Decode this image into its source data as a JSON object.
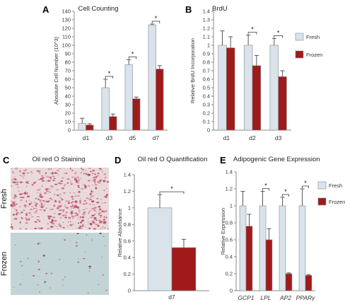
{
  "colors": {
    "fresh": "#d9e3e9",
    "frozen": "#a01a1a",
    "axis": "#8a8a8a",
    "error": "#555555",
    "fresh_photo_bg": "#e9d9db",
    "fresh_photo_dots": "#b63a52",
    "frozen_photo_bg": "#c3d4d6",
    "frozen_photo_dots": "#9c3a4c"
  },
  "panels": {
    "A": {
      "letter": "A"
    },
    "B": {
      "letter": "B"
    },
    "C": {
      "letter": "C",
      "title": "Oil red O Staining",
      "fresh_label": "Fresh",
      "frozen_label": "Frozen"
    },
    "D": {
      "letter": "D"
    },
    "E": {
      "letter": "E"
    }
  },
  "legend": {
    "fresh": "Fresh",
    "frozen": "Frozen"
  },
  "chart_data": [
    {
      "id": "A",
      "type": "bar",
      "title": "Cell Counting",
      "ylabel": "Absolute Cell Number (10^3)",
      "categories": [
        "d1",
        "d3",
        "d5",
        "d7"
      ],
      "ylim": [
        0,
        140
      ],
      "yticks": [
        "0",
        "10",
        "20",
        "30",
        "40",
        "50",
        "60",
        "70",
        "80",
        "90",
        "100",
        "110",
        "120",
        "130",
        "140"
      ],
      "series": [
        {
          "name": "Fresh",
          "values": [
            8,
            50,
            77,
            124
          ],
          "errors": [
            6,
            10,
            6,
            1
          ]
        },
        {
          "name": "Frozen",
          "values": [
            6,
            16,
            37,
            72
          ],
          "errors": [
            1.5,
            3,
            2,
            4
          ]
        }
      ],
      "significance": [
        false,
        true,
        true,
        true
      ],
      "sig_label": "*"
    },
    {
      "id": "B",
      "type": "bar",
      "title": "BrdU",
      "ylabel": "Relative BrdU Incorporation",
      "categories": [
        "d1",
        "d2",
        "d3"
      ],
      "ylim": [
        0,
        1.4
      ],
      "yticks": [
        "0",
        "0.1",
        "0.2",
        "0.3",
        "0.4",
        "0.5",
        "0.6",
        "0.7",
        "0.8",
        "0.9",
        "1",
        "1.1",
        "1.2",
        "1.3",
        "1.4"
      ],
      "series": [
        {
          "name": "Fresh",
          "values": [
            1.0,
            1.0,
            1.0
          ],
          "errors": [
            0.17,
            0.12,
            0.08
          ]
        },
        {
          "name": "Frozen",
          "values": [
            0.97,
            0.76,
            0.63
          ],
          "errors": [
            0.13,
            0.12,
            0.07
          ]
        }
      ],
      "significance": [
        false,
        true,
        true
      ],
      "sig_label": "*",
      "legend": "right"
    },
    {
      "id": "D",
      "type": "bar",
      "title": "Oil red O Quantification",
      "ylabel": "Relative Absorbance",
      "categories": [
        "d7"
      ],
      "ylim": [
        0,
        1.4
      ],
      "yticks": [
        "0",
        "0.2",
        "0.4",
        "0.6",
        "0.8",
        "1",
        "1.2",
        "1.4"
      ],
      "series": [
        {
          "name": "Fresh",
          "values": [
            1.0
          ],
          "errors": [
            0.16
          ]
        },
        {
          "name": "Frozen",
          "values": [
            0.52
          ],
          "errors": [
            0.1
          ]
        }
      ],
      "significance": [
        true
      ],
      "sig_label": "*"
    },
    {
      "id": "E",
      "type": "bar",
      "title": "Adipogenic Gene Expression",
      "ylabel": "Relative Expression",
      "categories": [
        "GCP1",
        "LPL",
        "AP2",
        "PPARγ"
      ],
      "ylim": [
        0,
        1.4
      ],
      "yticks": [
        "0",
        "0.2",
        "0.4",
        "0.6",
        "0.8",
        "1",
        "1.2",
        "1.4"
      ],
      "series": [
        {
          "name": "Fresh",
          "values": [
            1.0,
            1.0,
            1.0,
            1.0
          ],
          "errors": [
            0.17,
            0.17,
            0.1,
            0.2
          ]
        },
        {
          "name": "Frozen",
          "values": [
            0.76,
            0.6,
            0.2,
            0.18
          ],
          "errors": [
            0.14,
            0.13,
            0.01,
            0.01
          ]
        }
      ],
      "significance": [
        false,
        true,
        true,
        true
      ],
      "sig_label": "*",
      "legend": "right"
    }
  ]
}
